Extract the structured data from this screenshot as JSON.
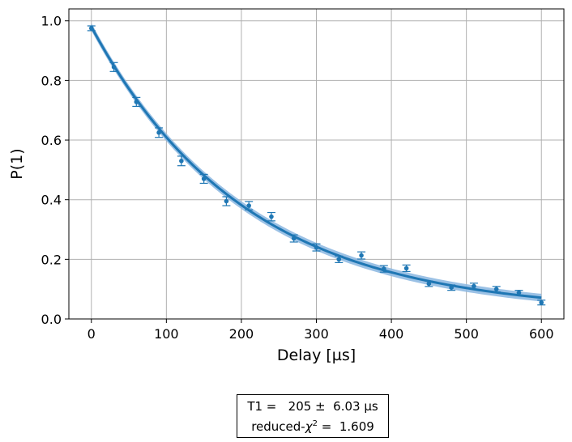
{
  "chart_data": {
    "type": "scatter",
    "xlabel": "Delay [µs]",
    "ylabel": "P(1)",
    "xlim": [
      -30,
      630
    ],
    "ylim": [
      0.0,
      1.04
    ],
    "xticks": [
      0,
      100,
      200,
      300,
      400,
      500,
      600
    ],
    "yticks": [
      0.0,
      0.2,
      0.4,
      0.6,
      0.8,
      1.0
    ],
    "xtick_labels": [
      "0",
      "100",
      "200",
      "300",
      "400",
      "500",
      "600"
    ],
    "ytick_labels": [
      "0.0",
      "0.2",
      "0.4",
      "0.6",
      "0.8",
      "1.0"
    ],
    "grid": true,
    "legend": "none",
    "colors": {
      "fit": "#1f77b4",
      "band": "#8ab6e0",
      "points": "#1f77b4",
      "grid": "#b0b0b0"
    },
    "series": [
      {
        "kind": "data",
        "x": [
          0,
          30,
          60,
          90,
          120,
          150,
          180,
          210,
          240,
          270,
          300,
          330,
          360,
          390,
          420,
          450,
          480,
          510,
          540,
          570,
          600
        ],
        "y": [
          0.975,
          0.845,
          0.728,
          0.625,
          0.53,
          0.47,
          0.395,
          0.38,
          0.343,
          0.27,
          0.24,
          0.2,
          0.213,
          0.168,
          0.17,
          0.118,
          0.105,
          0.11,
          0.1,
          0.088,
          0.055
        ],
        "yerr": [
          0.008,
          0.015,
          0.015,
          0.016,
          0.016,
          0.015,
          0.015,
          0.014,
          0.014,
          0.012,
          0.012,
          0.011,
          0.012,
          0.011,
          0.011,
          0.009,
          0.009,
          0.01,
          0.009,
          0.008,
          0.008
        ]
      },
      {
        "kind": "fit",
        "model": "A*exp(-x/T1)+B",
        "A": 0.96,
        "B": 0.02,
        "T1": 205,
        "band_halfwidth": 0.013
      }
    ]
  },
  "fit_box": {
    "line1": "T1 =   205 ±  6.03 µs",
    "line2_prefix": "reduced-",
    "chi_symbol": "χ",
    "chi_exp": "2",
    "line2_suffix": " =  1.609"
  }
}
